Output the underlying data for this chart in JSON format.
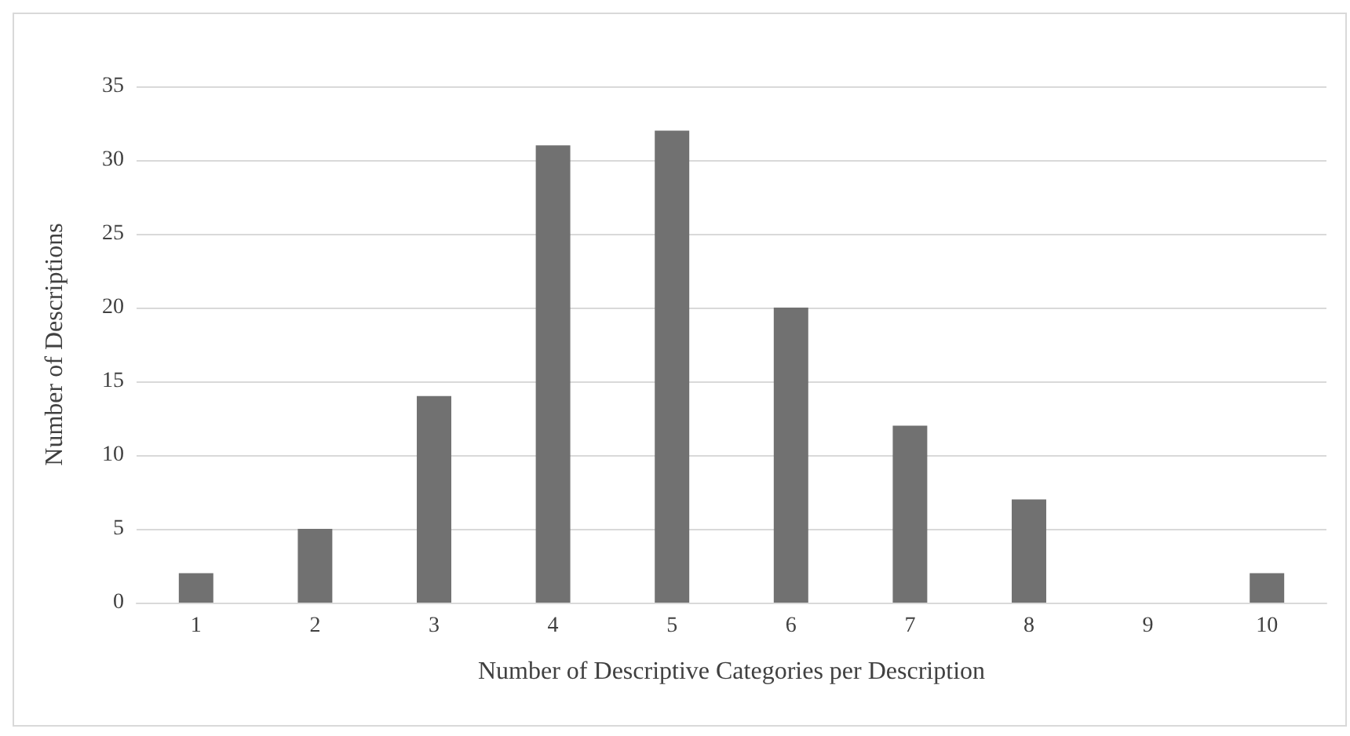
{
  "chart_data": {
    "type": "bar",
    "xlabel": "Number of Descriptive Categories per Description",
    "ylabel": "Number of Descriptions",
    "categories": [
      "1",
      "2",
      "3",
      "4",
      "5",
      "6",
      "7",
      "8",
      "9",
      "10"
    ],
    "values": [
      2,
      5,
      14,
      31,
      32,
      20,
      12,
      7,
      0,
      2
    ],
    "color": "#717171",
    "ylim": [
      0,
      35
    ],
    "yticks": [
      0,
      5,
      10,
      15,
      20,
      25,
      30,
      35
    ],
    "grid": "y"
  }
}
